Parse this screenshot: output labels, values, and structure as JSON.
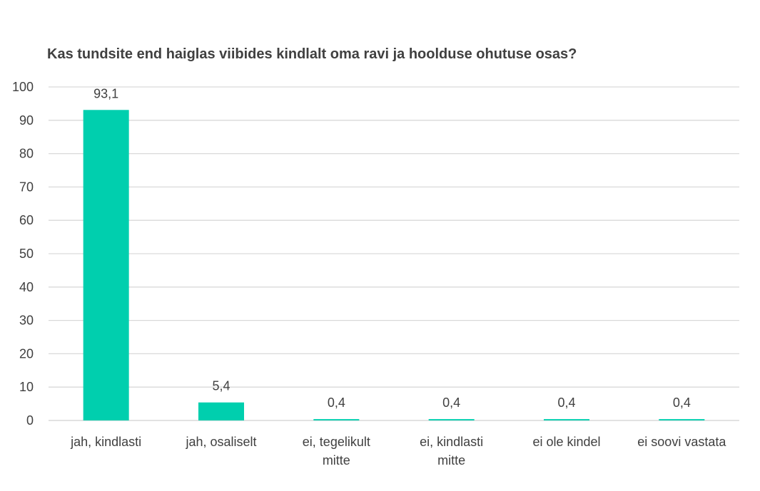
{
  "chart_data": {
    "type": "bar",
    "title": "Kas tundsite end haiglas viibides kindlalt oma ravi ja hoolduse ohutuse osas?",
    "categories": [
      [
        "jah, kindlasti"
      ],
      [
        "jah, osaliselt"
      ],
      [
        "ei, tegelikult",
        "mitte"
      ],
      [
        "ei, kindlasti",
        "mitte"
      ],
      [
        "ei ole kindel"
      ],
      [
        "ei soovi vastata"
      ]
    ],
    "values": [
      93.1,
      5.4,
      0.4,
      0.4,
      0.4,
      0.4
    ],
    "data_labels": [
      "93,1",
      "5,4",
      "0,4",
      "0,4",
      "0,4",
      "0,4"
    ],
    "yticks": [
      "0",
      "10",
      "20",
      "30",
      "40",
      "50",
      "60",
      "70",
      "80",
      "90",
      "100"
    ],
    "ylim": [
      0,
      100
    ],
    "grid": true,
    "bar_color": "#00cfae",
    "xlabel": "",
    "ylabel": ""
  }
}
